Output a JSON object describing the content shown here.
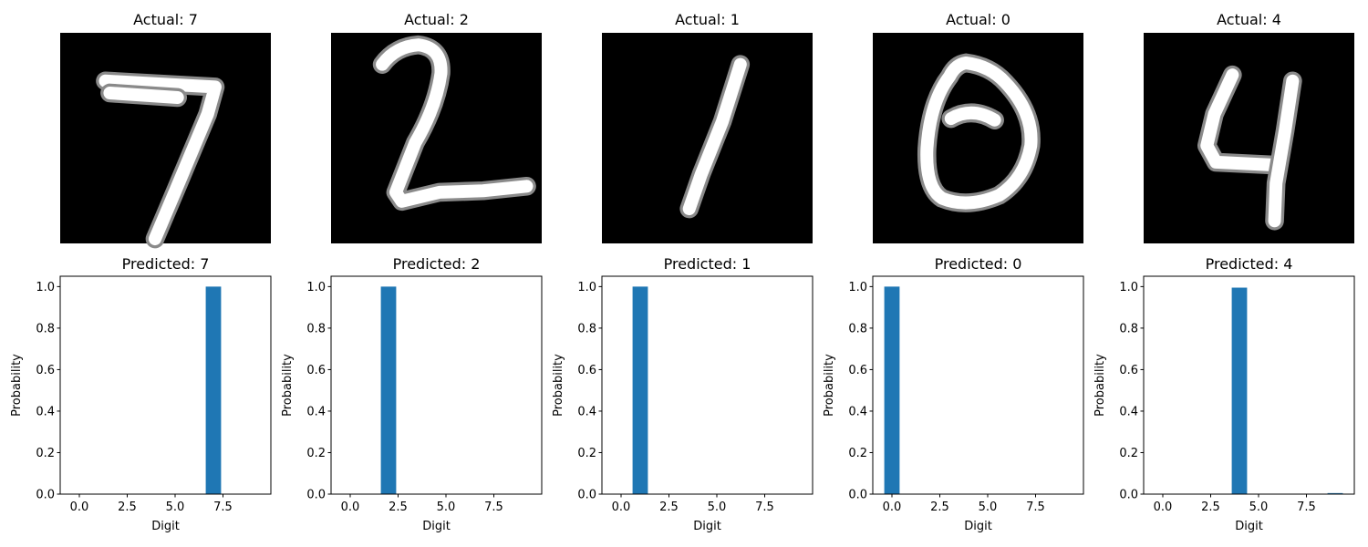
{
  "figure": {
    "bar_color": "#1f77b4",
    "image_background": "#000000",
    "stroke_color": "#ffffff"
  },
  "chart_data": [
    {
      "type": "image",
      "title": "Actual: 7",
      "digit_glyph": "7",
      "colormap": "gray",
      "axis": "off"
    },
    {
      "type": "image",
      "title": "Actual: 2",
      "digit_glyph": "2",
      "colormap": "gray",
      "axis": "off"
    },
    {
      "type": "image",
      "title": "Actual: 1",
      "digit_glyph": "1",
      "colormap": "gray",
      "axis": "off"
    },
    {
      "type": "image",
      "title": "Actual: 0",
      "digit_glyph": "0",
      "colormap": "gray",
      "axis": "off"
    },
    {
      "type": "image",
      "title": "Actual: 4",
      "digit_glyph": "4",
      "colormap": "gray",
      "axis": "off"
    },
    {
      "type": "bar",
      "title": "Predicted: 7",
      "xlabel": "Digit",
      "ylabel": "Probability",
      "categories": [
        0,
        1,
        2,
        3,
        4,
        5,
        6,
        7,
        8,
        9
      ],
      "values": [
        0,
        0,
        0,
        0,
        0,
        0,
        0,
        1.0,
        0,
        0
      ],
      "xlim": [
        -1,
        10
      ],
      "ylim": [
        0,
        1.05
      ],
      "xticks": [
        "0.0",
        "2.5",
        "5.0",
        "7.5"
      ],
      "yticks": [
        "0.0",
        "0.2",
        "0.4",
        "0.6",
        "0.8",
        "1.0"
      ],
      "grid": false
    },
    {
      "type": "bar",
      "title": "Predicted: 2",
      "xlabel": "Digit",
      "ylabel": "Probability",
      "categories": [
        0,
        1,
        2,
        3,
        4,
        5,
        6,
        7,
        8,
        9
      ],
      "values": [
        0,
        0,
        1.0,
        0,
        0,
        0,
        0,
        0,
        0,
        0
      ],
      "xlim": [
        -1,
        10
      ],
      "ylim": [
        0,
        1.05
      ],
      "xticks": [
        "0.0",
        "2.5",
        "5.0",
        "7.5"
      ],
      "yticks": [
        "0.0",
        "0.2",
        "0.4",
        "0.6",
        "0.8",
        "1.0"
      ],
      "grid": false
    },
    {
      "type": "bar",
      "title": "Predicted: 1",
      "xlabel": "Digit",
      "ylabel": "Probability",
      "categories": [
        0,
        1,
        2,
        3,
        4,
        5,
        6,
        7,
        8,
        9
      ],
      "values": [
        0,
        1.0,
        0,
        0,
        0,
        0,
        0,
        0,
        0,
        0
      ],
      "xlim": [
        -1,
        10
      ],
      "ylim": [
        0,
        1.05
      ],
      "xticks": [
        "0.0",
        "2.5",
        "5.0",
        "7.5"
      ],
      "yticks": [
        "0.0",
        "0.2",
        "0.4",
        "0.6",
        "0.8",
        "1.0"
      ],
      "grid": false
    },
    {
      "type": "bar",
      "title": "Predicted: 0",
      "xlabel": "Digit",
      "ylabel": "Probability",
      "categories": [
        0,
        1,
        2,
        3,
        4,
        5,
        6,
        7,
        8,
        9
      ],
      "values": [
        1.0,
        0,
        0,
        0,
        0,
        0,
        0,
        0,
        0,
        0
      ],
      "xlim": [
        -1,
        10
      ],
      "ylim": [
        0,
        1.05
      ],
      "xticks": [
        "0.0",
        "2.5",
        "5.0",
        "7.5"
      ],
      "yticks": [
        "0.0",
        "0.2",
        "0.4",
        "0.6",
        "0.8",
        "1.0"
      ],
      "grid": false
    },
    {
      "type": "bar",
      "title": "Predicted: 4",
      "xlabel": "Digit",
      "ylabel": "Probability",
      "categories": [
        0,
        1,
        2,
        3,
        4,
        5,
        6,
        7,
        8,
        9
      ],
      "values": [
        0,
        0,
        0,
        0,
        0.995,
        0,
        0,
        0,
        0,
        0.005
      ],
      "xlim": [
        -1,
        10
      ],
      "ylim": [
        0,
        1.05
      ],
      "xticks": [
        "0.0",
        "2.5",
        "5.0",
        "7.5"
      ],
      "yticks": [
        "0.0",
        "0.2",
        "0.4",
        "0.6",
        "0.8",
        "1.0"
      ],
      "grid": false
    }
  ]
}
